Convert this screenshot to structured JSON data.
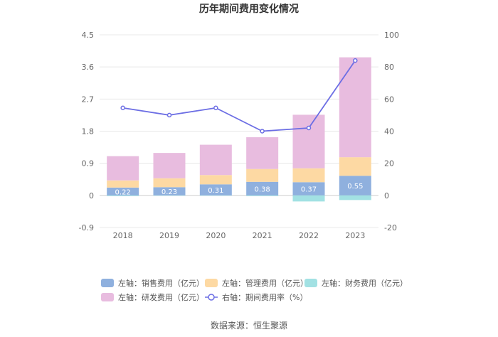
{
  "chart_data": {
    "type": "bar",
    "stacked": true,
    "title": "历年期间费用变化情况",
    "categories": [
      "2018",
      "2019",
      "2020",
      "2021",
      "2022",
      "2023"
    ],
    "left_axis": {
      "ylim": [
        -0.9,
        4.5
      ],
      "ticks": [
        "4.5",
        "3.6",
        "2.7",
        "1.8",
        "0.9",
        "0",
        "-0.9"
      ],
      "tick_values": [
        4.5,
        3.6,
        2.7,
        1.8,
        0.9,
        0,
        -0.9
      ]
    },
    "right_axis": {
      "ylim": [
        -20,
        100
      ],
      "ticks": [
        "100",
        "80",
        "60",
        "40",
        "20",
        "0",
        "-20"
      ],
      "tick_values": [
        100,
        80,
        60,
        40,
        20,
        0,
        -20
      ]
    },
    "series": [
      {
        "name": "左轴：销售费用（亿元）",
        "axis": "left",
        "color": "#8fb0de",
        "values": [
          0.22,
          0.23,
          0.31,
          0.38,
          0.37,
          0.55
        ],
        "labels": [
          "0.22",
          "0.23",
          "0.31",
          "0.38",
          "0.37",
          "0.55"
        ]
      },
      {
        "name": "左轴：管理费用（亿元）",
        "axis": "left",
        "color": "#fdd9a3",
        "values": [
          0.2,
          0.25,
          0.26,
          0.36,
          0.39,
          0.52
        ]
      },
      {
        "name": "左轴：财务费用（亿元）",
        "axis": "left",
        "color": "#a2e1e3",
        "values": [
          -0.02,
          -0.01,
          -0.01,
          -0.02,
          -0.17,
          -0.13
        ]
      },
      {
        "name": "左轴：研发费用（亿元）",
        "axis": "left",
        "color": "#e8bcdf",
        "values": [
          0.68,
          0.71,
          0.85,
          0.89,
          1.5,
          2.8
        ]
      },
      {
        "name": "右轴：期间费用率（%）",
        "axis": "right",
        "type": "line",
        "color": "#6c6ee4",
        "values": [
          54.5,
          50,
          54.5,
          40,
          42,
          84
        ]
      }
    ],
    "legend_position": "bottom"
  },
  "source_text": "数据来源：恒生聚源"
}
